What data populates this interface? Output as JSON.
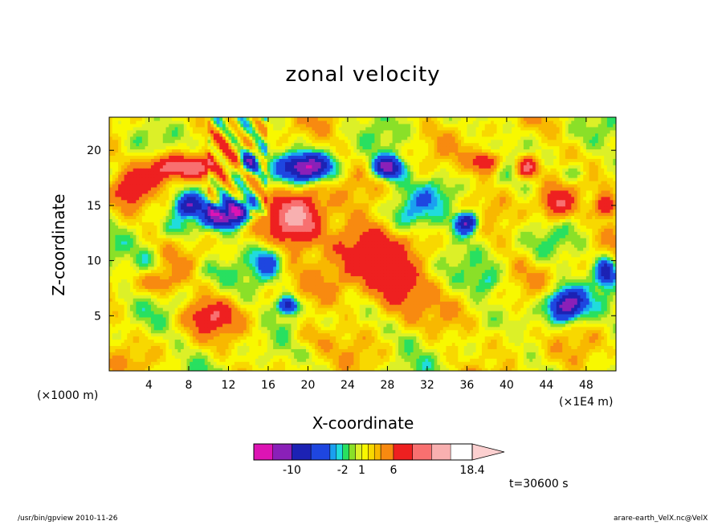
{
  "chart_data": {
    "type": "heatmap",
    "title": "zonal velocity",
    "xlabel": "X-coordinate",
    "ylabel": "Z-coordinate",
    "x_unit_left": "(×1000 m)",
    "x_unit_right": "(×1E4 m)",
    "xlim": [
      0,
      51
    ],
    "ylim": [
      0,
      23
    ],
    "x_ticks": [
      4,
      8,
      12,
      16,
      20,
      24,
      28,
      32,
      36,
      40,
      44,
      48
    ],
    "y_ticks": [
      5,
      10,
      15,
      20
    ],
    "colorbar": {
      "ticks": [
        "-10",
        "-2",
        "1",
        "6",
        "18.4"
      ],
      "levels": [
        -16,
        -13,
        -10,
        -7,
        -4,
        -3,
        -2,
        -1,
        0,
        1,
        2,
        3,
        4,
        6,
        9,
        12,
        15,
        18.4
      ],
      "colors": [
        "#dd14b4",
        "#8a20b8",
        "#1c22b4",
        "#1e46e0",
        "#1aa0f0",
        "#20dcdc",
        "#28e060",
        "#8ae028",
        "#dcf028",
        "#f8f800",
        "#f8d800",
        "#f8b800",
        "#f88a10",
        "#ee2020",
        "#f87070",
        "#f8b0b0",
        "#fcd0d0"
      ]
    }
  },
  "timestamp": "t=30600 s",
  "footer_left": "/usr/bin/gpview   2010-11-26",
  "footer_right": "arare-earth_VelX.nc@VelX"
}
